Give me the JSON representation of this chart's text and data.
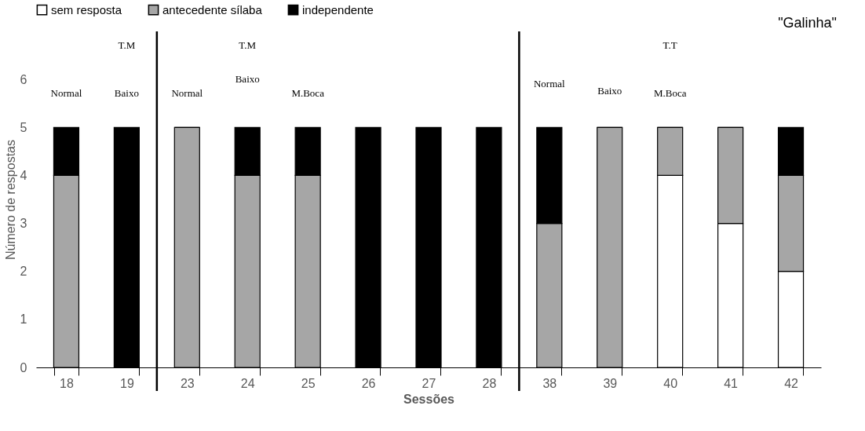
{
  "chart_data": {
    "type": "bar",
    "stacked": true,
    "xlabel": "Sessões",
    "ylabel": "Número de respostas",
    "categories": [
      "18",
      "19",
      "23",
      "24",
      "25",
      "26",
      "27",
      "28",
      "38",
      "39",
      "40",
      "41",
      "42"
    ],
    "series": [
      {
        "name": "sem resposta",
        "color": "#ffffff",
        "values": [
          0,
          0,
          0,
          0,
          0,
          0,
          0,
          0,
          0,
          0,
          4,
          3,
          2
        ]
      },
      {
        "name": "antecedente sílaba",
        "color": "#a6a6a6",
        "values": [
          4,
          0,
          5,
          4,
          4,
          0,
          0,
          0,
          3,
          5,
          1,
          2,
          2
        ]
      },
      {
        "name": "independente",
        "color": "#000000",
        "values": [
          1,
          5,
          0,
          1,
          1,
          5,
          5,
          5,
          2,
          0,
          0,
          0,
          1
        ]
      }
    ],
    "ylim": [
      0,
      7
    ],
    "yticks": [
      {
        "value": 0,
        "label": "0"
      },
      {
        "value": 1,
        "label": "1"
      },
      {
        "value": 2,
        "label": "2"
      },
      {
        "value": 3,
        "label": "3"
      },
      {
        "value": 4,
        "label": "4"
      },
      {
        "value": 5,
        "label": "5"
      },
      {
        "value": 6,
        "label": "6"
      }
    ],
    "grid": false,
    "legend": "top",
    "annotations": [
      "Normal",
      "Baixo",
      "T.M",
      "Normal",
      "Baixo",
      "T.M",
      "M.Boca",
      "Normal",
      "Baixo",
      "M.Boca",
      "T.T",
      "\"Galinha\""
    ]
  }
}
